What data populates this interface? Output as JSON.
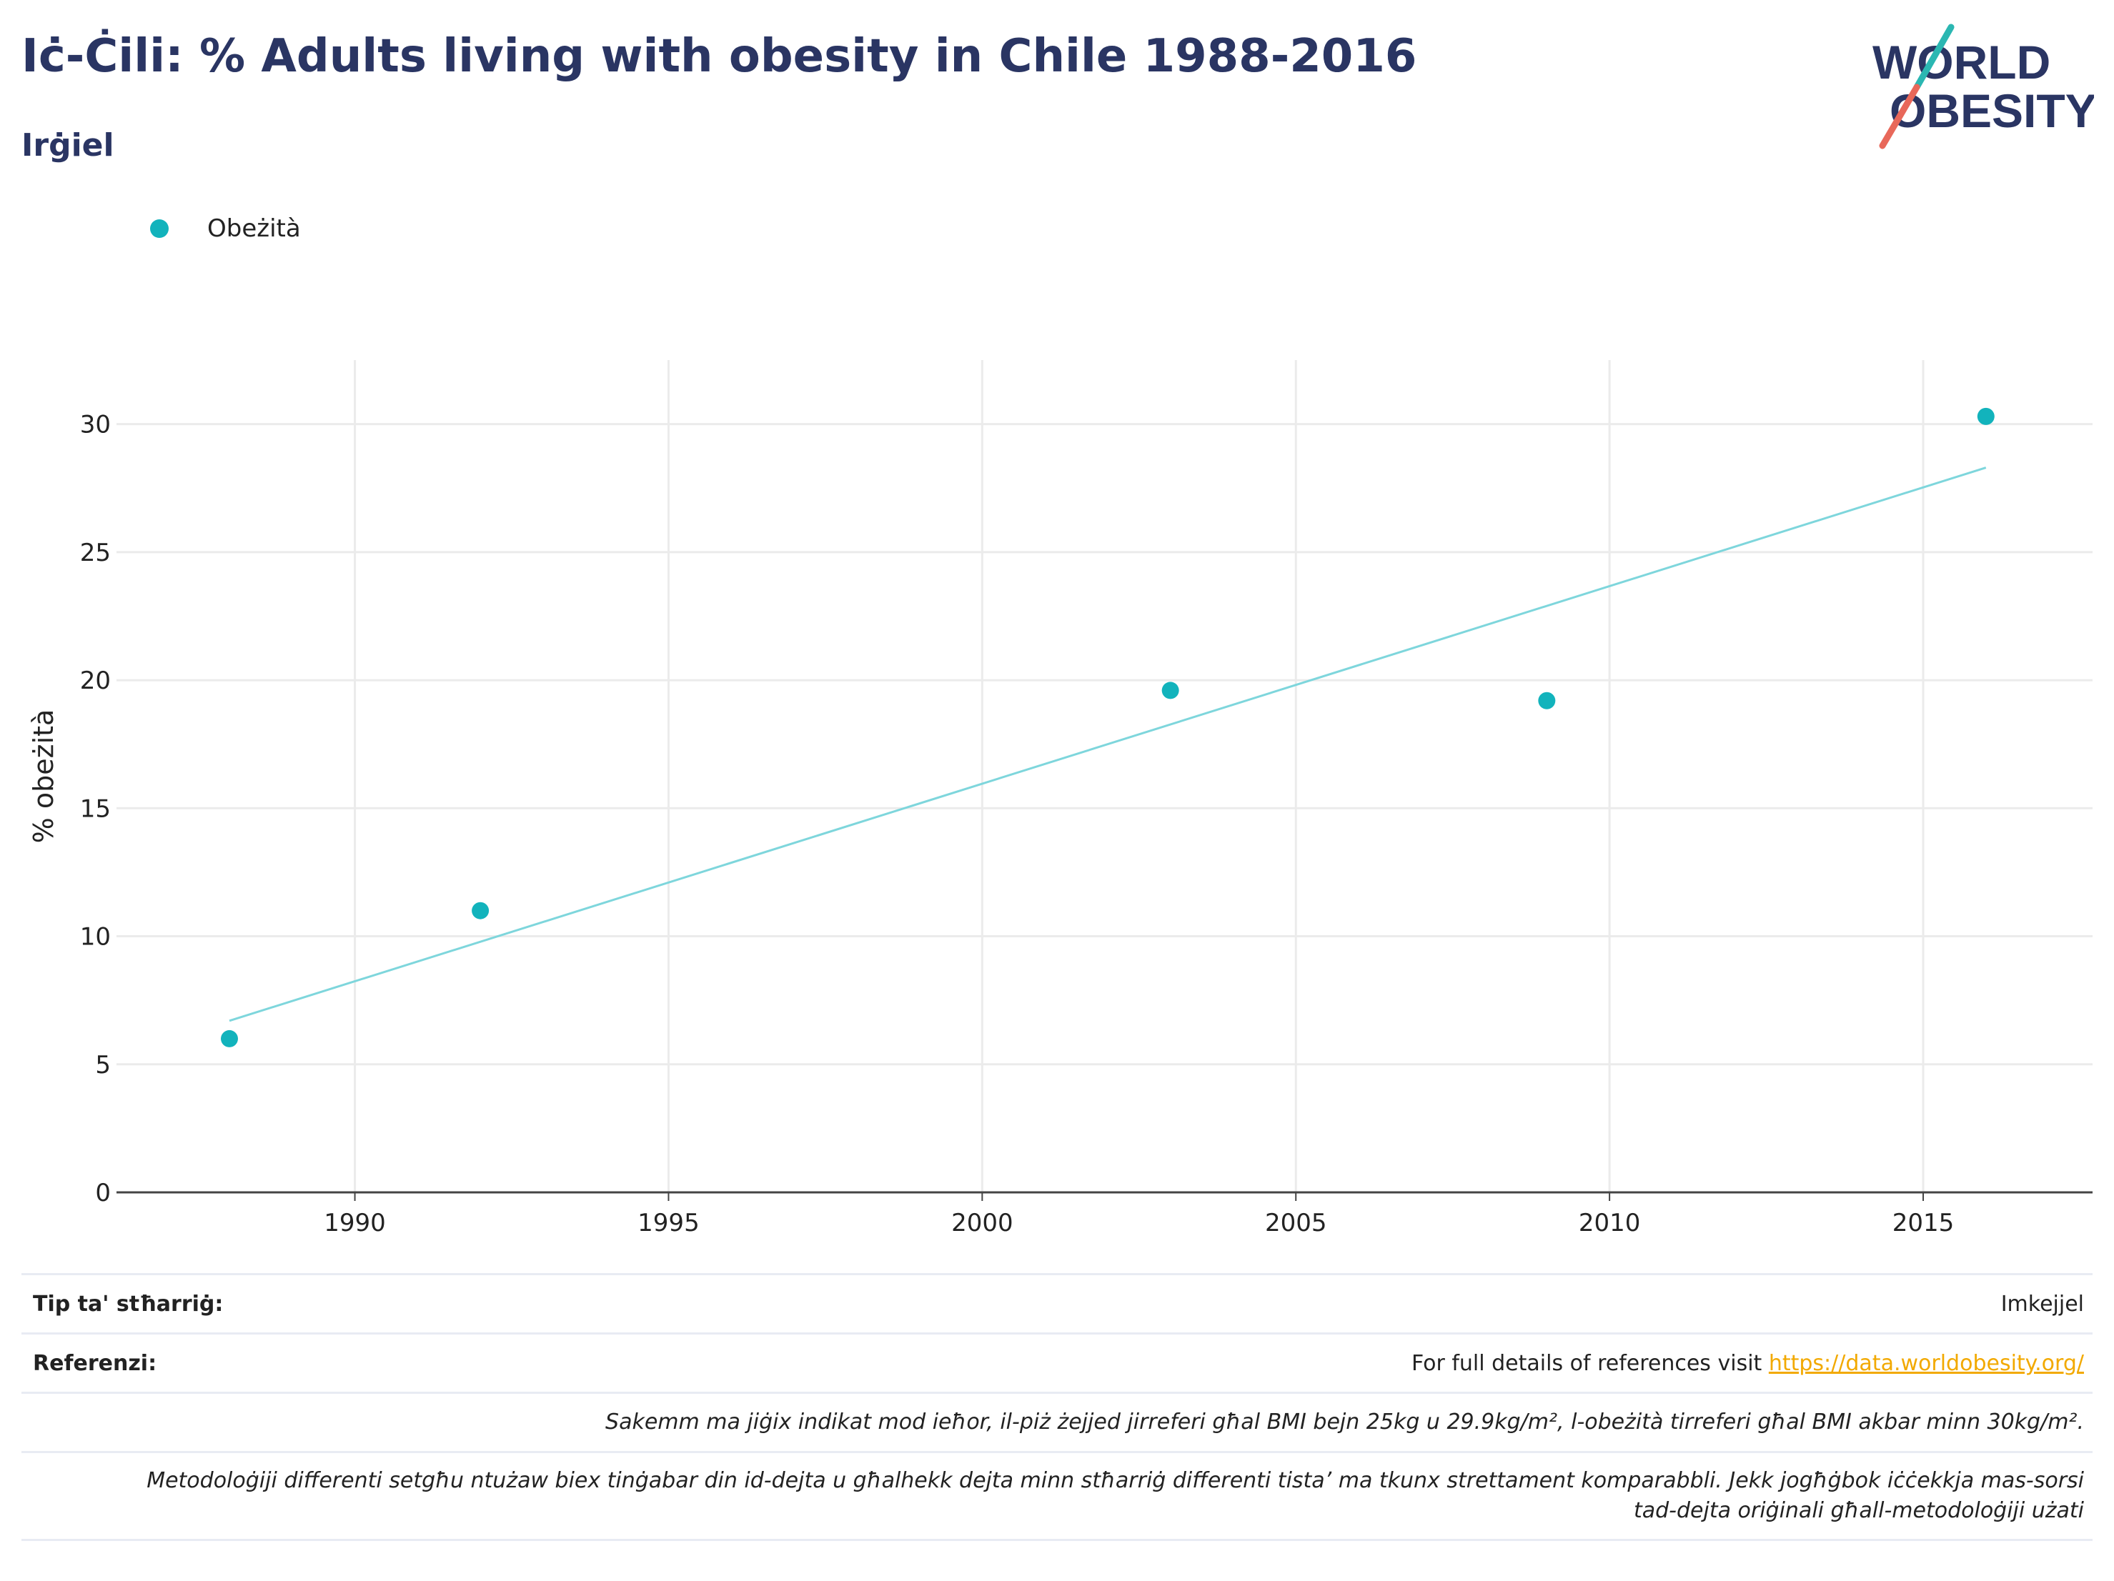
{
  "header": {
    "title": "Iċ-Ċili: % Adults living with obesity in Chile 1988-2016",
    "subtitle": "Irġiel",
    "logo_line1": "WORLD",
    "logo_line2": "OBESITY"
  },
  "legend": {
    "items": [
      {
        "label": "Obeżità",
        "color": "#12b3bc"
      }
    ]
  },
  "chart_data": {
    "type": "scatter",
    "title": "",
    "xlabel": "",
    "ylabel": "% obeżità",
    "xlim": [
      1986.2,
      2017.7
    ],
    "ylim": [
      0,
      32.5
    ],
    "xticks": [
      1990,
      1995,
      2000,
      2005,
      2010,
      2015
    ],
    "yticks": [
      0,
      5,
      10,
      15,
      20,
      25,
      30
    ],
    "grid": true,
    "legend_position": "top-left",
    "series": [
      {
        "name": "Obeżità",
        "color": "#12b3bc",
        "points": [
          {
            "x": 1988,
            "y": 6.0
          },
          {
            "x": 1992,
            "y": 11.0
          },
          {
            "x": 2003,
            "y": 19.6
          },
          {
            "x": 2009,
            "y": 19.2
          },
          {
            "x": 2016,
            "y": 30.3
          }
        ]
      }
    ],
    "trendline": {
      "color": "#7ed6dc",
      "x": [
        1988,
        2016
      ],
      "y": [
        6.7,
        28.3
      ]
    }
  },
  "footer": {
    "source_type_label": "Tip ta' stħarriġ:",
    "source_type_value": "Imkejjel",
    "references_label": "Referenzi:",
    "references_text": "For full details of references visit ",
    "references_link": "https://data.worldobesity.org/",
    "note1": "Sakemm ma jiġix indikat mod ieħor, il-piż żejjed jirreferi għal BMI bejn 25kg u 29.9kg/m², l-obeżità tirreferi għal BMI akbar minn 30kg/m².",
    "note2_line1": "Metodoloġiji differenti setgħu ntużaw biex tinġabar din id-dejta u għalhekk dejta minn stħarriġ differenti tista’ ma tkunx strettament komparabbli. Jekk jogħġbok iċċekkja mas-sorsi",
    "note2_line2": "tad-dejta oriġinali għall-metodoloġiji użati"
  }
}
